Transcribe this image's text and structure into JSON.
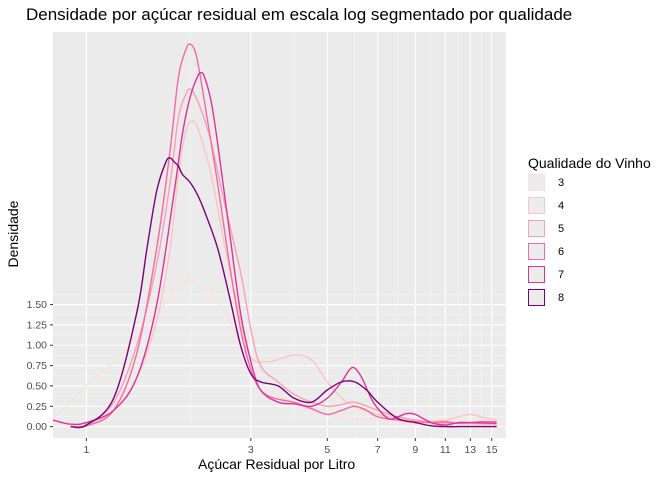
{
  "chart_data": {
    "type": "line",
    "title": "Densidade por açúcar residual em escala log segmentado por qualidade",
    "xlabel": "Açúcar Residual por Litro",
    "ylabel": "Densidade",
    "x_scale": "log10",
    "xlim": [
      0.8,
      16.5
    ],
    "ylim": [
      -0.14,
      4.85
    ],
    "x_ticks": [
      1,
      3,
      5,
      7,
      9,
      11,
      13,
      15
    ],
    "x_tick_labels": [
      "1",
      "3",
      "5",
      "7",
      "9",
      "11",
      "13",
      "15"
    ],
    "x_minor_gridlines": [
      2,
      4,
      6,
      8,
      10,
      12,
      14
    ],
    "y_ticks": [
      0,
      0.25,
      0.5,
      0.75,
      1.0,
      1.25,
      1.5
    ],
    "y_tick_labels": [
      "0.00",
      "0.25",
      "0.50",
      "0.75",
      "1.00",
      "1.25",
      "1.50"
    ],
    "grid": true,
    "legend": {
      "title": "Qualidade do Vinho",
      "position": "right",
      "labels": [
        "3",
        "4",
        "5",
        "6",
        "7",
        "8"
      ]
    },
    "series": [
      {
        "name": "3",
        "color": "#fde0dd",
        "x": [
          0.8,
          0.9,
          1.0,
          1.2,
          1.4,
          1.6,
          1.8,
          1.9,
          2.0,
          2.1,
          2.2,
          2.4,
          2.6,
          2.8,
          3.0,
          3.2,
          3.5,
          4.0,
          4.5,
          5.0,
          6.0,
          8.0,
          10.0,
          12.0,
          14.0,
          15.5
        ],
        "y": [
          0.1,
          0.3,
          0.5,
          0.8,
          1.1,
          1.4,
          1.65,
          1.75,
          1.8,
          1.75,
          1.7,
          1.55,
          1.3,
          1.0,
          0.75,
          0.55,
          0.4,
          0.3,
          0.2,
          0.15,
          0.1,
          0.05,
          0.02,
          0.01,
          0.005,
          0.0
        ]
      },
      {
        "name": "4",
        "color": "#fcc5c0",
        "x": [
          0.9,
          1.0,
          1.2,
          1.4,
          1.6,
          1.75,
          1.85,
          1.95,
          2.05,
          2.15,
          2.3,
          2.5,
          2.8,
          3.0,
          3.4,
          4.0,
          4.5,
          5.0,
          5.5,
          6.0,
          7.0,
          8.0,
          9.0,
          10.0,
          11.0,
          12.0,
          13.0,
          14.0,
          15.5
        ],
        "y": [
          0.0,
          0.02,
          0.2,
          0.6,
          1.3,
          2.2,
          3.1,
          3.65,
          3.75,
          3.55,
          3.1,
          2.3,
          1.3,
          0.85,
          0.8,
          0.88,
          0.82,
          0.55,
          0.35,
          0.25,
          0.15,
          0.1,
          0.08,
          0.07,
          0.08,
          0.12,
          0.15,
          0.12,
          0.08
        ]
      },
      {
        "name": "5",
        "color": "#fa9fb5",
        "x": [
          0.9,
          1.0,
          1.2,
          1.4,
          1.6,
          1.75,
          1.85,
          1.95,
          2.0,
          2.05,
          2.15,
          2.3,
          2.5,
          2.8,
          3.0,
          3.2,
          3.6,
          4.0,
          4.5,
          5.0,
          5.5,
          6.0,
          7.0,
          8.0,
          9.0,
          10.0,
          12.0,
          15.5
        ],
        "y": [
          0.0,
          0.02,
          0.3,
          1.0,
          2.0,
          3.0,
          3.8,
          4.1,
          4.15,
          4.1,
          3.9,
          3.5,
          2.8,
          1.9,
          1.2,
          0.75,
          0.55,
          0.4,
          0.3,
          0.25,
          0.27,
          0.3,
          0.2,
          0.12,
          0.08,
          0.05,
          0.04,
          0.03
        ]
      },
      {
        "name": "6",
        "color": "#f768a1",
        "x": [
          0.9,
          1.0,
          1.2,
          1.4,
          1.6,
          1.75,
          1.85,
          1.95,
          2.0,
          2.05,
          2.1,
          2.2,
          2.4,
          2.6,
          2.8,
          3.0,
          3.2,
          3.5,
          4.0,
          4.5,
          5.0,
          5.5,
          6.0,
          6.5,
          7.0,
          8.0,
          9.0,
          10.0,
          11.0,
          12.0,
          13.0,
          14.0,
          15.5
        ],
        "y": [
          0.0,
          0.01,
          0.2,
          0.9,
          2.2,
          3.4,
          4.3,
          4.65,
          4.7,
          4.65,
          4.5,
          4.0,
          3.0,
          2.0,
          1.2,
          0.7,
          0.45,
          0.35,
          0.3,
          0.22,
          0.15,
          0.2,
          0.25,
          0.2,
          0.12,
          0.08,
          0.06,
          0.05,
          0.06,
          0.04,
          0.05,
          0.06,
          0.06
        ]
      },
      {
        "name": "7",
        "color": "#dd3497",
        "x": [
          0.8,
          0.9,
          1.0,
          1.2,
          1.4,
          1.6,
          1.8,
          1.9,
          2.0,
          2.1,
          2.15,
          2.2,
          2.3,
          2.4,
          2.6,
          2.8,
          3.0,
          3.2,
          3.6,
          4.0,
          4.5,
          5.0,
          5.5,
          5.8,
          6.0,
          6.3,
          6.8,
          7.5,
          8.0,
          8.5,
          9.0,
          10.0,
          11.0,
          12.0,
          13.0,
          15.5
        ],
        "y": [
          0.08,
          0.03,
          0.05,
          0.2,
          0.6,
          1.5,
          2.9,
          3.6,
          4.05,
          4.3,
          4.35,
          4.3,
          4.0,
          3.5,
          2.4,
          1.4,
          0.8,
          0.45,
          0.3,
          0.28,
          0.25,
          0.35,
          0.55,
          0.7,
          0.72,
          0.6,
          0.3,
          0.1,
          0.12,
          0.16,
          0.15,
          0.05,
          0.02,
          0.05,
          0.05,
          0.04
        ]
      },
      {
        "name": "8",
        "color": "#7a0177",
        "x": [
          0.9,
          1.0,
          1.2,
          1.4,
          1.5,
          1.6,
          1.7,
          1.75,
          1.8,
          1.85,
          1.9,
          2.0,
          2.1,
          2.2,
          2.4,
          2.6,
          2.8,
          3.0,
          3.2,
          3.6,
          4.0,
          4.5,
          5.0,
          5.5,
          6.0,
          6.5,
          7.0,
          8.0,
          9.0,
          10.0,
          11.0,
          12.0,
          13.0,
          15.5
        ],
        "y": [
          0.0,
          0.02,
          0.35,
          1.4,
          2.2,
          2.9,
          3.25,
          3.3,
          3.25,
          3.2,
          3.1,
          3.0,
          2.85,
          2.65,
          2.2,
          1.6,
          1.0,
          0.65,
          0.55,
          0.5,
          0.35,
          0.3,
          0.45,
          0.55,
          0.55,
          0.45,
          0.3,
          0.1,
          0.05,
          0.01,
          0.0,
          0.0,
          0.0,
          0.0
        ]
      }
    ]
  }
}
